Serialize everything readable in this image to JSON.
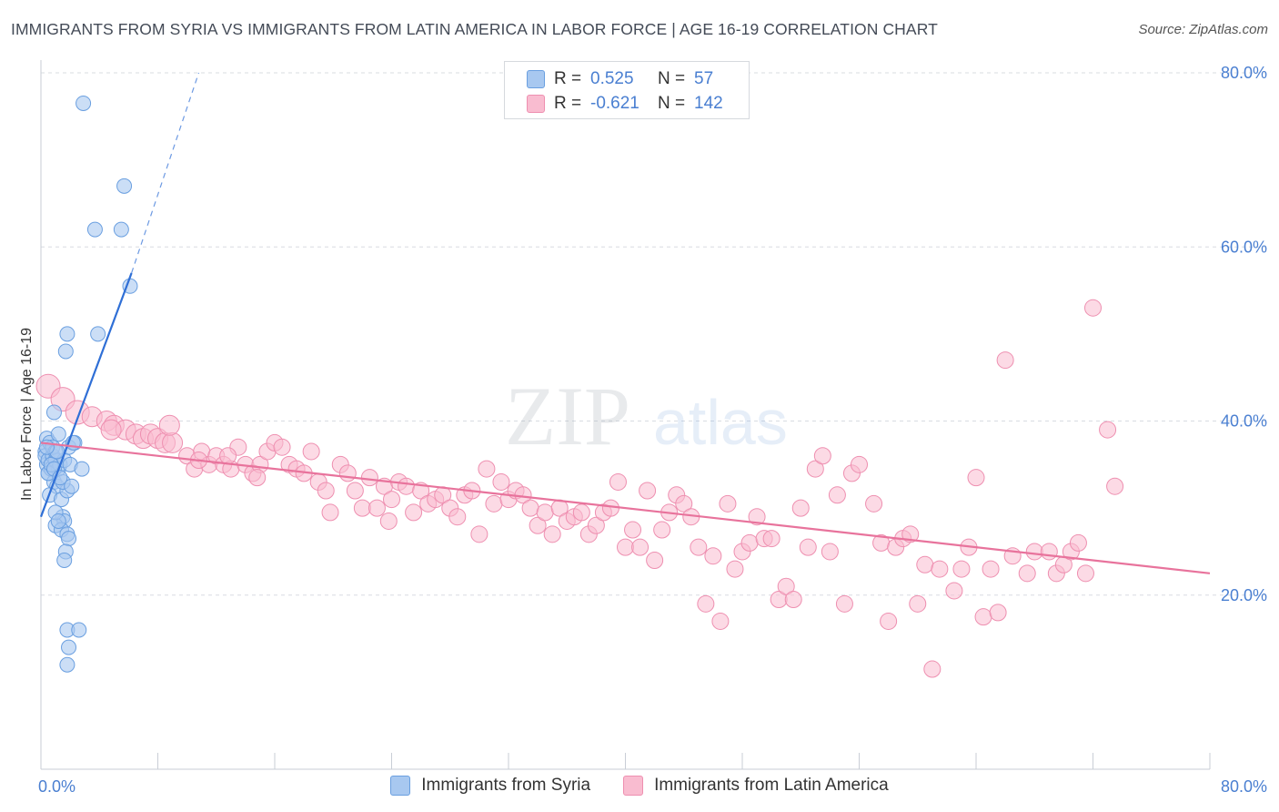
{
  "title": "IMMIGRANTS FROM SYRIA VS IMMIGRANTS FROM LATIN AMERICA IN LABOR FORCE | AGE 16-19 CORRELATION CHART",
  "source": "Source: ZipAtlas.com",
  "watermark": {
    "zip": "ZIP",
    "atlas": "atlas"
  },
  "legend_top": {
    "rows": [
      {
        "r_label": "R =",
        "r_value": "0.525",
        "n_label": "N =",
        "n_value": "57",
        "color": "#a8c8f0",
        "border": "#6a9fe0"
      },
      {
        "r_label": "R =",
        "r_value": "-0.621",
        "n_label": "N =",
        "n_value": "142",
        "color": "#f9bcd0",
        "border": "#ee8fb0"
      }
    ]
  },
  "legend_bottom": [
    {
      "label": "Immigrants from Syria",
      "color": "#a8c8f0",
      "border": "#6a9fe0"
    },
    {
      "label": "Immigrants from Latin America",
      "color": "#f9bcd0",
      "border": "#ee8fb0"
    }
  ],
  "chart_data": {
    "type": "scatter",
    "title": "IMMIGRANTS FROM SYRIA VS IMMIGRANTS FROM LATIN AMERICA IN LABOR FORCE | AGE 16-19 CORRELATION CHART",
    "xlabel": "",
    "ylabel": "In Labor Force | Age 16-19",
    "xlim": [
      0,
      80
    ],
    "ylim": [
      0,
      80
    ],
    "x_tick_labels": [
      "0.0%",
      "80.0%"
    ],
    "y_ticks": [
      20,
      40,
      60,
      80
    ],
    "y_tick_labels": [
      "20.0%",
      "40.0%",
      "60.0%",
      "80.0%"
    ],
    "grid": true,
    "series": [
      {
        "name": "Immigrants from Syria",
        "color": "#a8c8f0",
        "stroke": "#6a9fe0",
        "trend": {
          "x1": 0.0,
          "y1": 29.0,
          "x2": 6.2,
          "y2": 57.0,
          "dash_to_x": 10.8,
          "dash_to_y": 80.0,
          "color": "#2f6fd6"
        },
        "points": [
          [
            0.3,
            36.5
          ],
          [
            0.4,
            35.0
          ],
          [
            0.5,
            34.0
          ],
          [
            0.4,
            38.0
          ],
          [
            0.6,
            37.5
          ],
          [
            0.3,
            36.0
          ],
          [
            0.5,
            35.5
          ],
          [
            0.7,
            34.5
          ],
          [
            0.8,
            36.0
          ],
          [
            1.0,
            35.5
          ],
          [
            1.2,
            34.5
          ],
          [
            0.9,
            33.0
          ],
          [
            1.1,
            32.5
          ],
          [
            0.6,
            31.5
          ],
          [
            1.4,
            31.0
          ],
          [
            1.8,
            32.0
          ],
          [
            1.5,
            33.0
          ],
          [
            1.3,
            35.0
          ],
          [
            1.6,
            35.5
          ],
          [
            2.0,
            35.0
          ],
          [
            1.9,
            37.0
          ],
          [
            2.3,
            37.5
          ],
          [
            1.2,
            38.5
          ],
          [
            0.8,
            37.0
          ],
          [
            1.0,
            36.5
          ],
          [
            1.5,
            29.0
          ],
          [
            1.6,
            28.5
          ],
          [
            1.0,
            28.0
          ],
          [
            1.4,
            27.5
          ],
          [
            1.8,
            27.0
          ],
          [
            1.9,
            26.5
          ],
          [
            1.7,
            25.0
          ],
          [
            1.6,
            24.0
          ],
          [
            0.9,
            41.0
          ],
          [
            1.8,
            50.0
          ],
          [
            1.7,
            48.0
          ],
          [
            3.9,
            50.0
          ],
          [
            3.7,
            62.0
          ],
          [
            5.5,
            62.0
          ],
          [
            5.7,
            67.0
          ],
          [
            2.9,
            76.5
          ],
          [
            6.1,
            55.5
          ],
          [
            2.8,
            34.5
          ],
          [
            2.2,
            37.5
          ],
          [
            1.8,
            16.0
          ],
          [
            2.6,
            16.0
          ],
          [
            1.9,
            14.0
          ],
          [
            1.8,
            12.0
          ],
          [
            0.5,
            34.0
          ],
          [
            0.7,
            35.0
          ],
          [
            1.1,
            36.5
          ],
          [
            0.9,
            34.5
          ],
          [
            1.3,
            33.5
          ],
          [
            2.1,
            32.5
          ],
          [
            0.4,
            37.0
          ],
          [
            1.0,
            29.5
          ],
          [
            1.2,
            28.5
          ]
        ]
      },
      {
        "name": "Immigrants from Latin America",
        "color": "#f9bcd0",
        "stroke": "#ee8fb0",
        "trend": {
          "x1": 0.0,
          "y1": 37.5,
          "x2": 80.0,
          "y2": 22.5,
          "color": "#e8739c"
        },
        "points": [
          [
            0.5,
            44.0
          ],
          [
            1.5,
            42.5
          ],
          [
            2.5,
            41.0
          ],
          [
            3.5,
            40.5
          ],
          [
            4.5,
            40.0
          ],
          [
            5.0,
            39.5
          ],
          [
            5.8,
            39.0
          ],
          [
            6.5,
            38.5
          ],
          [
            7.0,
            38.0
          ],
          [
            7.5,
            38.5
          ],
          [
            8.0,
            38.0
          ],
          [
            8.5,
            37.5
          ],
          [
            9.0,
            37.5
          ],
          [
            10.0,
            36.0
          ],
          [
            10.5,
            34.5
          ],
          [
            11.0,
            36.5
          ],
          [
            11.5,
            35.0
          ],
          [
            12.0,
            36.0
          ],
          [
            12.5,
            35.0
          ],
          [
            13.0,
            34.5
          ],
          [
            13.5,
            37.0
          ],
          [
            14.0,
            35.0
          ],
          [
            14.5,
            34.0
          ],
          [
            15.0,
            35.0
          ],
          [
            15.5,
            36.5
          ],
          [
            16.0,
            37.5
          ],
          [
            16.5,
            37.0
          ],
          [
            17.0,
            35.0
          ],
          [
            17.5,
            34.5
          ],
          [
            18.0,
            34.0
          ],
          [
            18.5,
            36.5
          ],
          [
            19.0,
            33.0
          ],
          [
            19.5,
            32.0
          ],
          [
            20.5,
            35.0
          ],
          [
            21.0,
            34.0
          ],
          [
            21.5,
            32.0
          ],
          [
            22.0,
            30.0
          ],
          [
            22.5,
            33.5
          ],
          [
            23.0,
            30.0
          ],
          [
            23.5,
            32.5
          ],
          [
            24.0,
            31.0
          ],
          [
            24.5,
            33.0
          ],
          [
            25.0,
            32.5
          ],
          [
            25.5,
            29.5
          ],
          [
            26.0,
            32.0
          ],
          [
            26.5,
            30.5
          ],
          [
            27.0,
            31.0
          ],
          [
            27.5,
            31.5
          ],
          [
            28.0,
            30.0
          ],
          [
            28.5,
            29.0
          ],
          [
            29.0,
            31.5
          ],
          [
            29.5,
            32.0
          ],
          [
            30.0,
            27.0
          ],
          [
            30.5,
            34.5
          ],
          [
            31.0,
            30.5
          ],
          [
            31.5,
            33.0
          ],
          [
            32.0,
            31.0
          ],
          [
            32.5,
            32.0
          ],
          [
            33.0,
            31.5
          ],
          [
            33.5,
            30.0
          ],
          [
            34.0,
            28.0
          ],
          [
            34.5,
            29.5
          ],
          [
            35.0,
            27.0
          ],
          [
            35.5,
            30.0
          ],
          [
            36.0,
            28.5
          ],
          [
            36.5,
            29.0
          ],
          [
            37.0,
            29.5
          ],
          [
            37.5,
            27.0
          ],
          [
            38.0,
            28.0
          ],
          [
            38.5,
            29.5
          ],
          [
            39.0,
            30.0
          ],
          [
            39.5,
            33.0
          ],
          [
            40.0,
            25.5
          ],
          [
            40.5,
            27.5
          ],
          [
            41.0,
            25.5
          ],
          [
            41.5,
            32.0
          ],
          [
            42.0,
            24.0
          ],
          [
            42.5,
            27.5
          ],
          [
            43.0,
            29.5
          ],
          [
            43.5,
            31.5
          ],
          [
            44.0,
            30.5
          ],
          [
            44.5,
            29.0
          ],
          [
            45.0,
            25.5
          ],
          [
            45.5,
            19.0
          ],
          [
            46.0,
            24.5
          ],
          [
            46.5,
            17.0
          ],
          [
            47.0,
            30.5
          ],
          [
            47.5,
            23.0
          ],
          [
            48.0,
            25.0
          ],
          [
            48.5,
            26.0
          ],
          [
            49.0,
            29.0
          ],
          [
            49.5,
            26.5
          ],
          [
            50.0,
            26.5
          ],
          [
            50.5,
            19.5
          ],
          [
            51.0,
            21.0
          ],
          [
            51.5,
            19.5
          ],
          [
            52.0,
            30.0
          ],
          [
            52.5,
            25.5
          ],
          [
            53.0,
            34.5
          ],
          [
            53.5,
            36.0
          ],
          [
            54.0,
            25.0
          ],
          [
            54.5,
            31.5
          ],
          [
            55.0,
            19.0
          ],
          [
            55.5,
            34.0
          ],
          [
            56.0,
            35.0
          ],
          [
            57.0,
            30.5
          ],
          [
            57.5,
            26.0
          ],
          [
            58.0,
            17.0
          ],
          [
            58.5,
            25.5
          ],
          [
            59.0,
            26.5
          ],
          [
            59.5,
            27.0
          ],
          [
            60.0,
            19.0
          ],
          [
            60.5,
            23.5
          ],
          [
            61.0,
            11.5
          ],
          [
            61.5,
            23.0
          ],
          [
            62.5,
            20.5
          ],
          [
            63.0,
            23.0
          ],
          [
            63.5,
            25.5
          ],
          [
            64.0,
            33.5
          ],
          [
            64.5,
            17.5
          ],
          [
            65.0,
            23.0
          ],
          [
            65.5,
            18.0
          ],
          [
            66.0,
            47.0
          ],
          [
            66.5,
            24.5
          ],
          [
            67.5,
            22.5
          ],
          [
            68.0,
            25.0
          ],
          [
            69.0,
            25.0
          ],
          [
            69.5,
            22.5
          ],
          [
            70.0,
            23.5
          ],
          [
            70.5,
            25.0
          ],
          [
            71.0,
            26.0
          ],
          [
            71.5,
            22.5
          ],
          [
            72.0,
            53.0
          ],
          [
            73.0,
            39.0
          ],
          [
            73.5,
            32.5
          ],
          [
            8.8,
            39.5
          ],
          [
            4.8,
            39.0
          ],
          [
            10.8,
            35.5
          ],
          [
            12.8,
            36.0
          ],
          [
            14.8,
            33.5
          ],
          [
            19.8,
            29.5
          ],
          [
            23.8,
            28.5
          ]
        ]
      }
    ]
  }
}
